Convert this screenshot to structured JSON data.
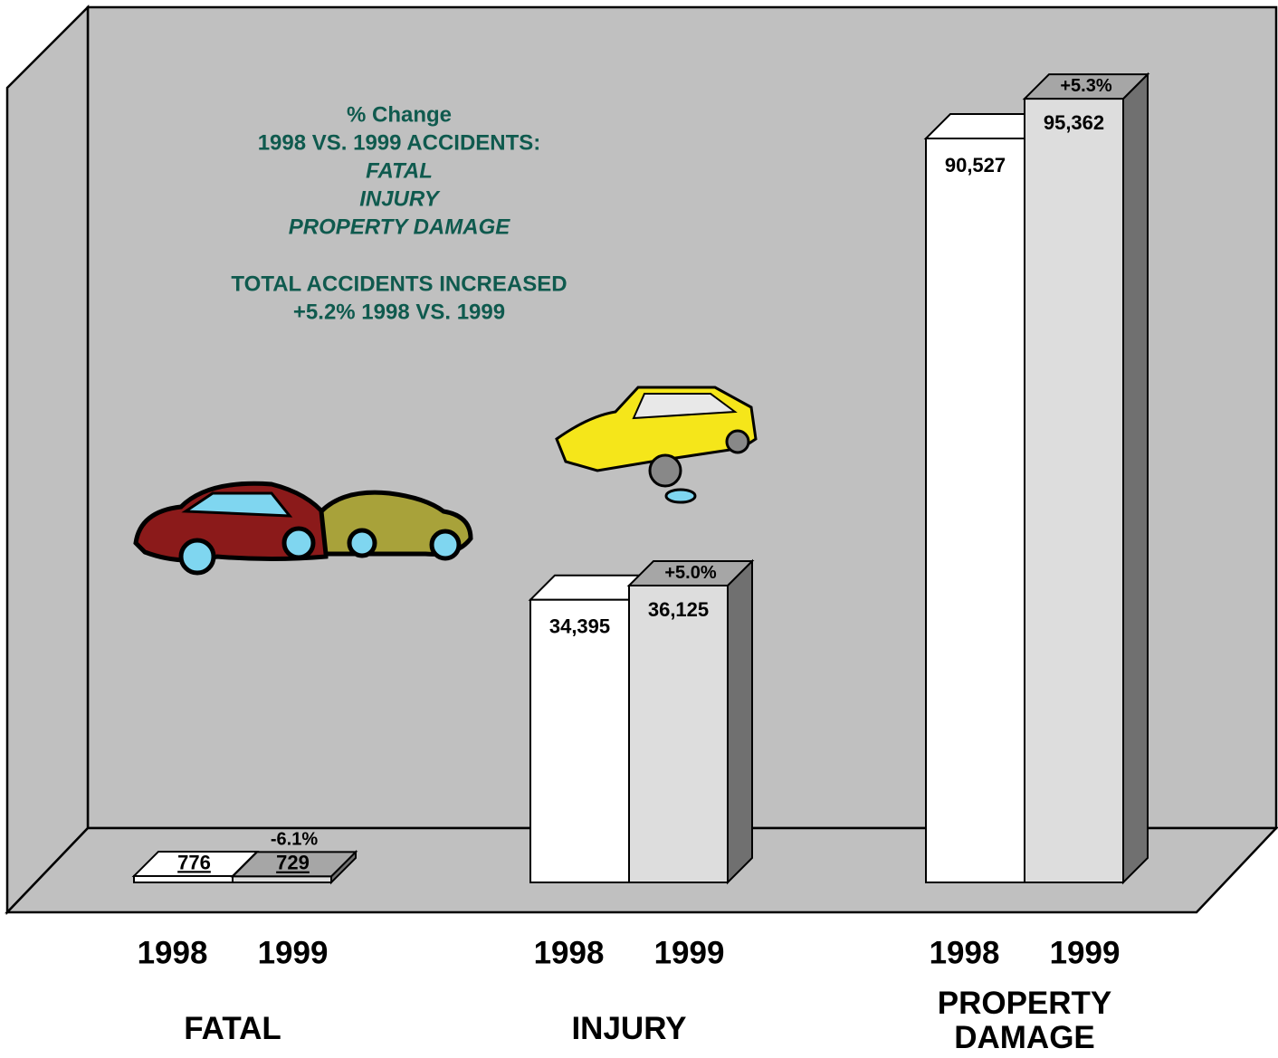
{
  "chart_data": {
    "type": "bar3d",
    "annotation": {
      "heading": [
        "% Change",
        "1998 VS. 1999 ACCIDENTS:"
      ],
      "items": [
        "FATAL",
        "INJURY",
        "PROPERTY DAMAGE"
      ],
      "note": [
        "TOTAL ACCIDENTS INCREASED",
        "+5.2% 1998 VS. 1999"
      ]
    },
    "categories": [
      "FATAL",
      "INJURY",
      "PROPERTY DAMAGE"
    ],
    "series": [
      {
        "name": "1998",
        "color": "#ffffff",
        "values": [
          776,
          34395,
          90527
        ],
        "value_labels": [
          "776",
          "34,395",
          "90,527"
        ]
      },
      {
        "name": "1999",
        "color": "#dddddd",
        "values": [
          729,
          36125,
          95362
        ],
        "value_labels": [
          "729",
          "36,125",
          "95,362"
        ]
      }
    ],
    "change_labels": [
      "-6.1%",
      "+5.0%",
      "+5.3%"
    ],
    "ylim": [
      0,
      100000
    ]
  }
}
